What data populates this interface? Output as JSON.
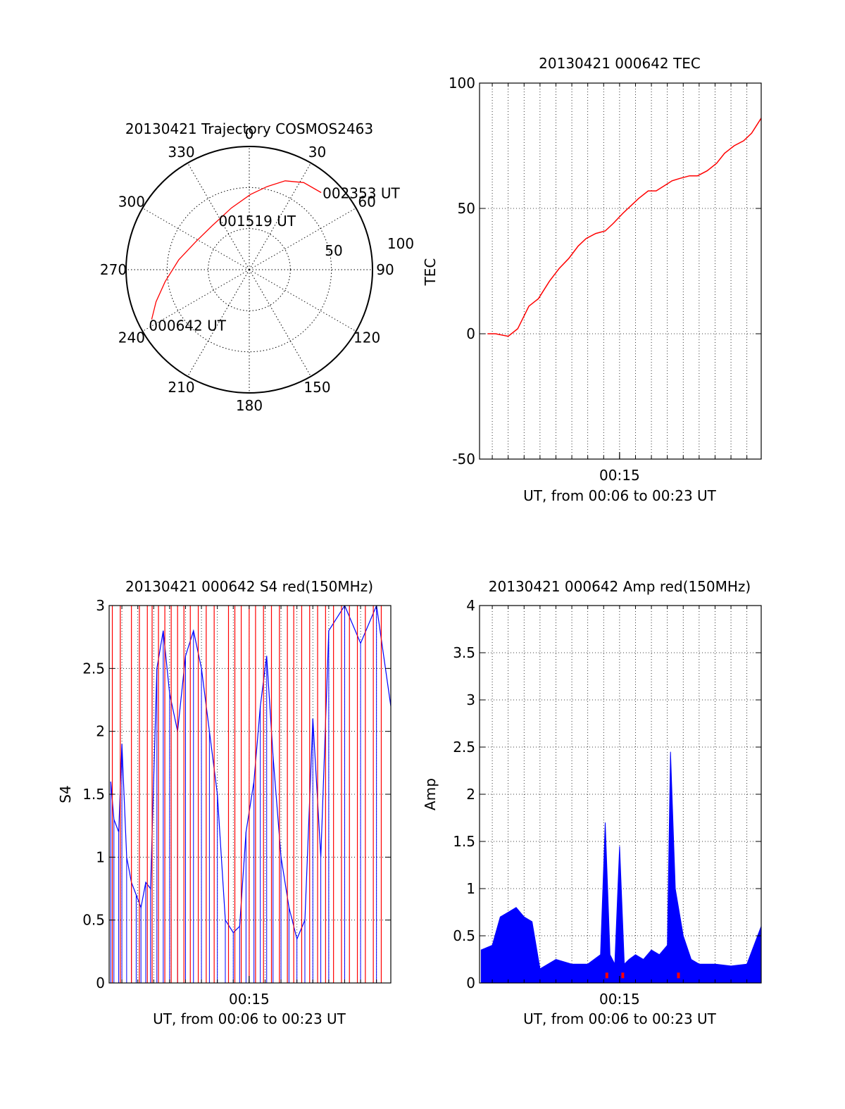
{
  "chart_data": [
    {
      "type": "polar",
      "title": "20130421 Trajectory COSMOS2463",
      "azimuth_ticks": [
        "0",
        "30",
        "60",
        "90",
        "120",
        "150",
        "180",
        "210",
        "240",
        "270",
        "300",
        "330"
      ],
      "radial_ticks": [
        "50",
        "100"
      ],
      "series": [
        {
          "color": "#ff0000",
          "points": [
            {
              "az": 243,
              "el": 10
            },
            {
              "az": 251,
              "el": 18
            },
            {
              "az": 262,
              "el": 28
            },
            {
              "az": 278,
              "el": 38
            },
            {
              "az": 298,
              "el": 46
            },
            {
              "az": 320,
              "el": 48
            },
            {
              "az": 344,
              "el": 43
            },
            {
              "az": 1,
              "el": 35
            },
            {
              "az": 12,
              "el": 28
            },
            {
              "az": 22,
              "el": 20
            },
            {
              "az": 32,
              "el": 15
            },
            {
              "az": 43,
              "el": 13
            }
          ]
        }
      ],
      "annotations": [
        {
          "text": "000642 UT",
          "az": 243,
          "el": 10
        },
        {
          "text": "001519 UT",
          "az": 327,
          "el": 47
        },
        {
          "text": "002353 UT",
          "az": 43,
          "el": 13
        }
      ]
    },
    {
      "type": "line",
      "title": "20130421 000642 TEC",
      "xlabel": "UT, from 00:06 to 00:23 UT",
      "ylabel": "TEC",
      "x_tick_labels": [
        "00:15"
      ],
      "y_ticks": [
        "-50",
        "0",
        "50",
        "100"
      ],
      "xlim": [
        6.2,
        23.9
      ],
      "ylim": [
        -50,
        100
      ],
      "grid": true,
      "series": [
        {
          "color": "#ff0000",
          "x": [
            6.7,
            7.2,
            8.0,
            8.6,
            9.3,
            9.9,
            10.6,
            11.2,
            11.8,
            12.4,
            12.9,
            13.5,
            14.1,
            14.6,
            15.2,
            15.7,
            16.2,
            16.8,
            17.3,
            17.8,
            18.3,
            18.8,
            19.4,
            19.9,
            20.5,
            21.1,
            21.6,
            22.2,
            22.8,
            23.3,
            23.9
          ],
          "y": [
            0,
            0,
            -1,
            2,
            11,
            14,
            21,
            26,
            30,
            35,
            38,
            40,
            41,
            44,
            48,
            51,
            54,
            57,
            57,
            59,
            61,
            62,
            63,
            63,
            65,
            68,
            72,
            75,
            77,
            80,
            86
          ]
        }
      ]
    },
    {
      "type": "line",
      "title": "20130421 000642 S4 red(150MHz)",
      "xlabel": "UT, from 00:06 to 00:23 UT",
      "ylabel": "S4",
      "x_tick_labels": [
        "00:15"
      ],
      "y_ticks": [
        "0",
        "0.5",
        "1",
        "1.5",
        "2",
        "2.5",
        "3"
      ],
      "xlim": [
        6.2,
        23.9
      ],
      "ylim": [
        0,
        3
      ],
      "grid": true,
      "series": [
        {
          "color": "#0000ff",
          "x": [
            6.3,
            6.5,
            6.8,
            7.0,
            7.3,
            7.6,
            7.9,
            8.2,
            8.5,
            8.8,
            9.2,
            9.6,
            10.0,
            10.5,
            11.0,
            11.5,
            12.0,
            12.5,
            13.0,
            13.5,
            14.0,
            14.4,
            14.8,
            15.3,
            15.7,
            16.1,
            16.5,
            17.0,
            17.5,
            18.0,
            18.5,
            19.0,
            19.5,
            20.0,
            21.0,
            22.0,
            23.0,
            23.9
          ],
          "y": [
            1.6,
            1.3,
            1.2,
            1.9,
            1.0,
            0.8,
            0.7,
            0.6,
            0.8,
            0.75,
            2.5,
            2.8,
            2.3,
            2.0,
            2.6,
            2.8,
            2.5,
            2.0,
            1.5,
            0.5,
            0.4,
            0.45,
            1.2,
            1.6,
            2.2,
            2.6,
            1.8,
            1.0,
            0.6,
            0.35,
            0.5,
            2.1,
            1.0,
            2.8,
            3.0,
            2.7,
            3.0,
            2.2
          ]
        },
        {
          "color": "#ff0000",
          "spike_x": [
            6.4,
            6.9,
            7.6,
            8.1,
            8.6,
            8.9,
            9.3,
            9.7,
            10.1,
            10.5,
            10.9,
            11.3,
            11.8,
            12.3,
            12.8,
            13.7,
            14.1,
            14.5,
            15.0,
            15.4,
            15.9,
            16.4,
            16.9,
            17.4,
            17.8,
            18.3,
            18.8,
            19.3,
            19.8,
            20.3,
            20.8,
            21.3,
            21.8,
            22.3,
            22.8,
            23.3
          ],
          "spike_y": [
            3,
            3,
            3,
            3,
            3,
            3,
            3,
            3,
            3,
            3,
            3,
            3,
            3,
            3,
            3,
            3,
            3,
            3,
            3,
            3,
            3,
            3,
            3,
            3,
            3,
            3,
            3,
            3,
            3,
            3,
            3,
            3,
            3,
            3,
            3,
            3
          ]
        }
      ]
    },
    {
      "type": "line",
      "title": "20130421 000642 Amp red(150MHz)",
      "xlabel": "UT, from 00:06 to 00:23 UT",
      "ylabel": "Amp",
      "x_tick_labels": [
        "00:15"
      ],
      "y_ticks": [
        "0",
        "0.5",
        "1",
        "1.5",
        "2",
        "2.5",
        "3",
        "3.5",
        "4"
      ],
      "xlim": [
        6.2,
        23.9
      ],
      "ylim": [
        0,
        4
      ],
      "grid": true,
      "series": [
        {
          "color": "#0000ff",
          "x": [
            6.3,
            7.0,
            7.5,
            8.0,
            8.5,
            9.0,
            9.5,
            10.0,
            11.0,
            12.0,
            13.0,
            13.8,
            14.1,
            14.4,
            14.7,
            15.0,
            15.3,
            15.6,
            16.0,
            16.5,
            17.0,
            17.5,
            18.0,
            18.2,
            18.5,
            19.0,
            19.5,
            20.0,
            21.0,
            22.0,
            23.0,
            23.9
          ],
          "y": [
            0.35,
            0.4,
            0.7,
            0.75,
            0.8,
            0.7,
            0.65,
            0.15,
            0.25,
            0.2,
            0.2,
            0.3,
            1.7,
            0.3,
            0.2,
            1.45,
            0.2,
            0.25,
            0.3,
            0.25,
            0.35,
            0.3,
            0.4,
            2.45,
            1.0,
            0.5,
            0.25,
            0.2,
            0.2,
            0.18,
            0.2,
            0.6
          ]
        },
        {
          "color": "#ff0000",
          "markers_x": [
            14.2,
            15.2,
            18.7
          ],
          "markers_y": [
            0.05,
            0.05,
            0.05
          ]
        }
      ]
    }
  ]
}
